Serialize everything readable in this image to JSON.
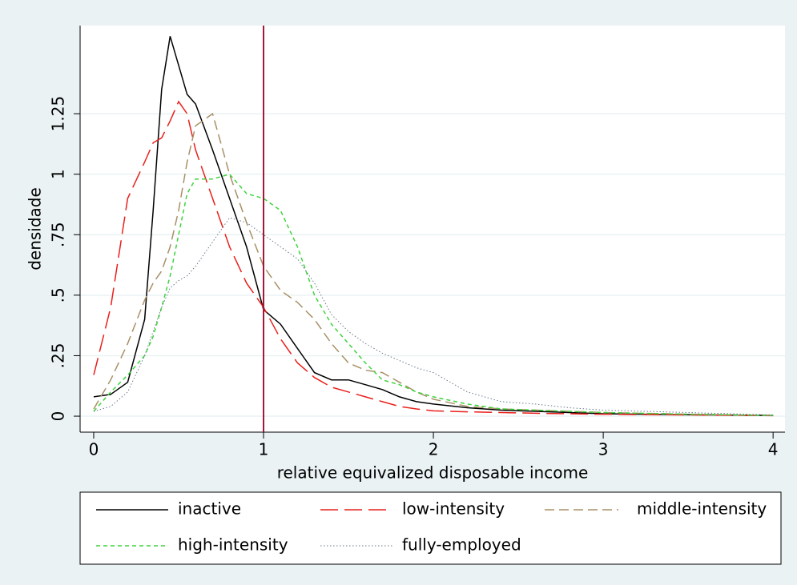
{
  "chart_data": {
    "type": "line",
    "xlabel": "relative equivalized disposable income",
    "ylabel": "densidade",
    "x": [
      0,
      0.1,
      0.2,
      0.3,
      0.35,
      0.4,
      0.45,
      0.5,
      0.55,
      0.6,
      0.7,
      0.8,
      0.9,
      1.0,
      1.1,
      1.2,
      1.3,
      1.4,
      1.5,
      1.6,
      1.7,
      1.8,
      1.9,
      2.0,
      2.2,
      2.4,
      2.6,
      2.8,
      3.0,
      3.5,
      4.0
    ],
    "series": [
      {
        "name": "inactive",
        "color": "#000000",
        "style": "solid",
        "values": [
          0.08,
          0.09,
          0.14,
          0.4,
          0.85,
          1.35,
          1.57,
          1.45,
          1.33,
          1.29,
          1.1,
          0.9,
          0.7,
          0.44,
          0.38,
          0.28,
          0.18,
          0.15,
          0.15,
          0.13,
          0.11,
          0.08,
          0.06,
          0.05,
          0.035,
          0.025,
          0.02,
          0.015,
          0.01,
          0.006,
          0.003
        ]
      },
      {
        "name": "low-intensity",
        "color": "#e8201c",
        "style": "longdash",
        "values": [
          0.17,
          0.45,
          0.9,
          1.05,
          1.13,
          1.15,
          1.22,
          1.3,
          1.25,
          1.1,
          0.9,
          0.7,
          0.55,
          0.45,
          0.32,
          0.22,
          0.16,
          0.12,
          0.1,
          0.08,
          0.06,
          0.04,
          0.03,
          0.022,
          0.018,
          0.015,
          0.012,
          0.01,
          0.008,
          0.005,
          0.002
        ]
      },
      {
        "name": "middle-intensity",
        "color": "#a89066",
        "style": "dash",
        "values": [
          0.03,
          0.15,
          0.3,
          0.48,
          0.55,
          0.6,
          0.7,
          0.85,
          1.05,
          1.2,
          1.25,
          1.0,
          0.8,
          0.62,
          0.52,
          0.47,
          0.4,
          0.3,
          0.22,
          0.19,
          0.18,
          0.14,
          0.1,
          0.07,
          0.04,
          0.03,
          0.025,
          0.02,
          0.015,
          0.008,
          0.003
        ]
      },
      {
        "name": "high-intensity",
        "color": "#3cd43c",
        "style": "shortdash",
        "values": [
          0.02,
          0.1,
          0.17,
          0.25,
          0.33,
          0.45,
          0.58,
          0.75,
          0.92,
          0.98,
          0.98,
          1.0,
          0.92,
          0.9,
          0.85,
          0.7,
          0.5,
          0.38,
          0.3,
          0.22,
          0.15,
          0.13,
          0.1,
          0.08,
          0.05,
          0.03,
          0.025,
          0.02,
          0.015,
          0.008,
          0.003
        ]
      },
      {
        "name": "fully-employed",
        "color": "#6a7a8c",
        "style": "dot",
        "values": [
          0.02,
          0.04,
          0.1,
          0.25,
          0.35,
          0.45,
          0.53,
          0.56,
          0.58,
          0.62,
          0.72,
          0.82,
          0.8,
          0.75,
          0.7,
          0.65,
          0.55,
          0.42,
          0.35,
          0.3,
          0.26,
          0.23,
          0.2,
          0.18,
          0.1,
          0.06,
          0.05,
          0.035,
          0.025,
          0.015,
          0.005
        ]
      }
    ],
    "reference_line": {
      "x": 1,
      "color": "#a3153a"
    },
    "xlim": [
      -0.08,
      4.07
    ],
    "ylim": [
      -0.066,
      1.614
    ],
    "xticks": [
      0,
      1,
      2,
      3,
      4
    ],
    "yticks": [
      0,
      {
        "value": 0.25,
        "label": ".25"
      },
      {
        "value": 0.5,
        "label": ".5"
      },
      {
        "value": 0.75,
        "label": ".75"
      },
      1,
      1.25
    ],
    "grid": true,
    "legend": "bottom"
  }
}
